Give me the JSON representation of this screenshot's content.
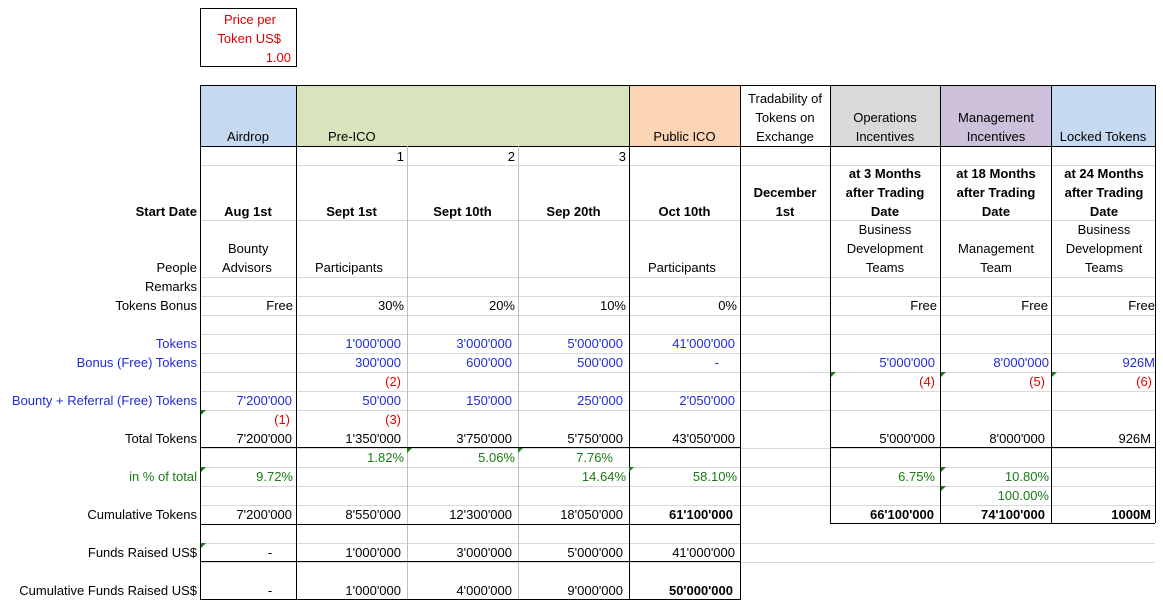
{
  "price_box": {
    "label_line1": "Price per",
    "label_line2": "Token US$",
    "value": "1.00"
  },
  "headers": {
    "airdrop": "Airdrop",
    "preico": "Pre-ICO",
    "public_ico": "Public ICO",
    "tradability": "Tradability of Tokens on Exchange",
    "operations": "Operations Incentives",
    "management": "Management Incentives",
    "locked": "Locked Tokens"
  },
  "colors": {
    "airdrop": "#c5d9f1",
    "preico": "#d8e4bc",
    "public_ico": "#fcd5b4",
    "operations": "#d9d9d9",
    "management": "#ccc0da",
    "locked": "#c5d9f1",
    "blue_text": "#1f2bd8",
    "red_text": "#e00000",
    "green_text": "#1a7a14"
  },
  "phase_numbers": [
    "1",
    "2",
    "3"
  ],
  "row_labels": {
    "start_date": "Start Date",
    "people": "People",
    "remarks": "Remarks",
    "tokens_bonus": "Tokens Bonus",
    "tokens": "Tokens",
    "bonus_free": "Bonus (Free) Tokens",
    "bounty_referral": "Bounty + Referral (Free) Tokens",
    "total_tokens": "Total Tokens",
    "in_pct": "in % of total",
    "cumulative_tokens": "Cumulative Tokens",
    "funds_raised": "Funds Raised US$",
    "cumulative_funds": "Cumulative Funds Raised US$"
  },
  "start_dates": {
    "airdrop": "Aug 1st",
    "pre1": "Sept 1st",
    "pre2": "Sept 10th",
    "pre3": "Sep 20th",
    "public": "Oct 10th",
    "tradability": "December 1st",
    "operations": "at 3 Months after Trading Date",
    "management": "at 18 Months after Trading Date",
    "locked": "at 24 Months after Trading Date"
  },
  "people": {
    "airdrop_1": "Bounty",
    "airdrop_2": "Advisors",
    "pre1": "Participants",
    "public": "Participants",
    "operations": "Business Development Teams",
    "management": "Management Team",
    "locked": "Business Development Teams"
  },
  "tokens_bonus": {
    "airdrop": "Free",
    "pre1": "30%",
    "pre2": "20%",
    "pre3": "10%",
    "public": "0%",
    "operations": "Free",
    "management": "Free",
    "locked": "Free"
  },
  "tokens": {
    "pre1": "1'000'000",
    "pre2": "3'000'000",
    "pre3": "5'000'000",
    "public": "41'000'000"
  },
  "bonus_free": {
    "pre1": "300'000",
    "pre2": "600'000",
    "pre3": "500'000",
    "public": "-",
    "operations": "5'000'000",
    "management": "8'000'000",
    "locked": "926M"
  },
  "notes": {
    "n1": "(1)",
    "n2": "(2)",
    "n3": "(3)",
    "n4": "(4)",
    "n5": "(5)",
    "n6": "(6)"
  },
  "bounty_referral": {
    "airdrop": "7'200'000",
    "pre1": "50'000",
    "pre2": "150'000",
    "pre3": "250'000",
    "public": "2'050'000"
  },
  "total_tokens": {
    "airdrop": "7'200'000",
    "pre1": "1'350'000",
    "pre2": "3'750'000",
    "pre3": "5'750'000",
    "public": "43'050'000",
    "operations": "5'000'000",
    "management": "8'000'000",
    "locked": "926M"
  },
  "pct_row1": {
    "pre1": "1.82%",
    "pre2": "5.06%",
    "pre3": "7.76%"
  },
  "pct_row2": {
    "airdrop": "9.72%",
    "pre3": "14.64%",
    "public": "58.10%",
    "operations": "6.75%",
    "management": "10.80%"
  },
  "pct_row3": {
    "management": "100.00%"
  },
  "cumulative_tokens": {
    "airdrop": "7'200'000",
    "pre1": "8'550'000",
    "pre2": "12'300'000",
    "pre3": "18'050'000",
    "public": "61'100'000",
    "operations": "66'100'000",
    "management": "74'100'000",
    "locked": "1000M"
  },
  "funds_raised": {
    "airdrop": "-",
    "pre1": "1'000'000",
    "pre2": "3'000'000",
    "pre3": "5'000'000",
    "public": "41'000'000"
  },
  "cumulative_funds": {
    "airdrop": "-",
    "pre1": "1'000'000",
    "pre2": "4'000'000",
    "pre3": "9'000'000",
    "public": "50'000'000"
  }
}
